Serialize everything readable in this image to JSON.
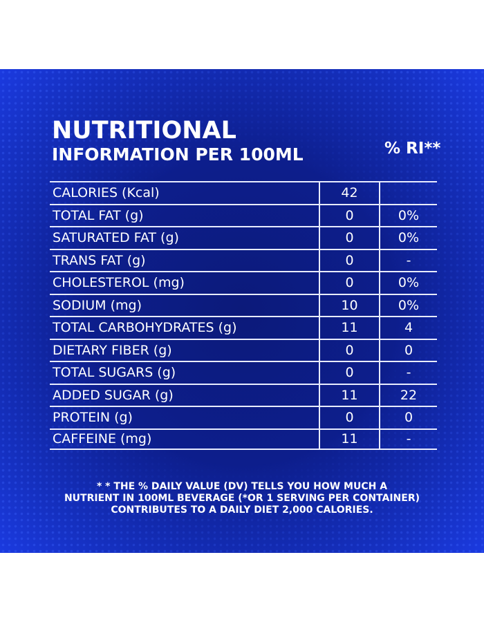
{
  "title_line1": "NUTRITIONAL",
  "title_line2": "INFORMATION PER 100ML",
  "ri_header": "% RI**",
  "rows": [
    {
      "name": "CALORIES (Kcal)",
      "value": "42",
      "ri": ""
    },
    {
      "name": "TOTAL FAT (g)",
      "value": "0",
      "ri": "0%"
    },
    {
      "name": "SATURATED FAT (g)",
      "value": "0",
      "ri": "0%"
    },
    {
      "name": "TRANS FAT (g)",
      "value": "0",
      "ri": "-"
    },
    {
      "name": "CHOLESTEROL  (mg)",
      "value": "0",
      "ri": "0%"
    },
    {
      "name": "SODIUM (mg)",
      "value": "10",
      "ri": "0%"
    },
    {
      "name": "TOTAL CARBOHYDRATES (g)",
      "value": "11",
      "ri": "4"
    },
    {
      "name": "DIETARY FIBER (g)",
      "value": "0",
      "ri": "0"
    },
    {
      "name": "TOTAL SUGARS (g)",
      "value": "0",
      "ri": "-"
    },
    {
      "name": "ADDED SUGAR (g)",
      "value": "11",
      "ri": "22"
    },
    {
      "name": "PROTEIN (g)",
      "value": "0",
      "ri": "0"
    },
    {
      "name": "CAFFEINE (mg)",
      "value": "11",
      "ri": "-"
    }
  ],
  "footnote": [
    "* * THE % DAILY VALUE (DV) TELLS YOU HOW MUCH A",
    "NUTRIENT IN 100ML BEVERAGE (*OR 1 SERVING PER CONTAINER)",
    "CONTRIBUTES TO A DAILY DIET 2,000 CALORIES."
  ],
  "colors": {
    "background": "#0d1e8c",
    "text": "#ffffff"
  }
}
